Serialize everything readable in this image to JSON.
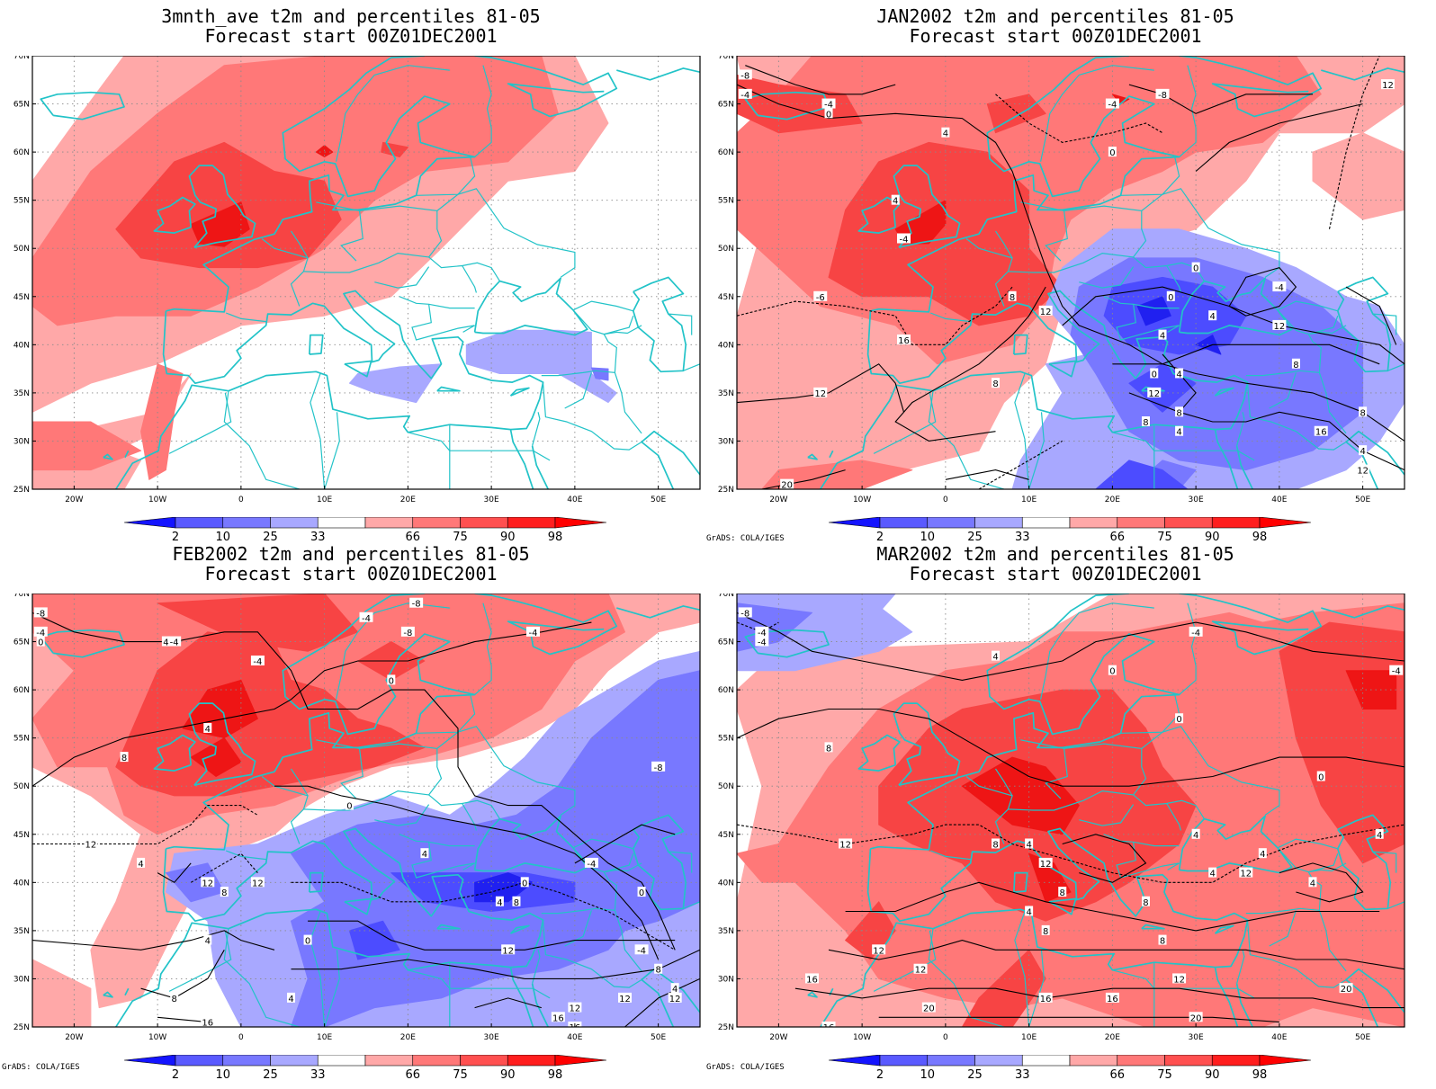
{
  "credit": "GrADS: COLA/IGES",
  "panels": [
    {
      "id": "p1",
      "title": "3mnth_ave t2m and percentiles 81-05",
      "subtitle": "Forecast start 00Z01DEC2001",
      "contours": []
    },
    {
      "id": "p2",
      "title": "JAN2002 t2m and percentiles 81-05",
      "subtitle": "Forecast start 00Z01DEC2001",
      "contours": [
        "-8",
        "-4",
        "0",
        "-4",
        "-8",
        "12",
        "4",
        "0",
        "-4",
        "0",
        "4",
        "8",
        "12",
        "-4",
        "0",
        "4",
        "8",
        "4",
        "12",
        "-4",
        "4",
        "-6",
        "0",
        "4",
        "4",
        "12",
        "8",
        "16",
        "20",
        "12",
        "8",
        "12",
        "16",
        "8",
        "8"
      ]
    },
    {
      "id": "p3",
      "title": "FEB2002 t2m and percentiles 81-05",
      "subtitle": "Forecast start 00Z01DEC2001",
      "contours": [
        "-8",
        "-4",
        "0",
        "-4",
        "4",
        "-8",
        "-4",
        "-8",
        "-4",
        "0",
        "-4",
        "4",
        "8",
        "-8",
        "12",
        "0",
        "4",
        "0",
        "-4",
        "4",
        "8",
        "12",
        "12",
        "4",
        "8",
        "12",
        "0",
        "4",
        "-4",
        "8",
        "4",
        "12",
        "8",
        "0",
        "12",
        "16",
        "16",
        "16",
        "12",
        "4"
      ]
    },
    {
      "id": "p4",
      "title": "MAR2002 t2m and percentiles 81-05",
      "subtitle": "Forecast start 00Z01DEC2001",
      "contours": [
        "-8",
        "-4",
        "-4",
        "0",
        "-4",
        "-4",
        "4",
        "0",
        "8",
        "0",
        "4",
        "4",
        "4",
        "12",
        "8",
        "12",
        "4",
        "8",
        "8",
        "12",
        "8",
        "8",
        "4",
        "12",
        "12",
        "12",
        "16",
        "16",
        "20",
        "16",
        "20",
        "16",
        "20",
        "4",
        "4"
      ]
    }
  ],
  "axes": {
    "lat_labels": [
      "70N",
      "65N",
      "60N",
      "55N",
      "50N",
      "45N",
      "40N",
      "35N",
      "30N",
      "25N"
    ],
    "lon_labels": [
      "20W",
      "10W",
      "0",
      "10E",
      "20E",
      "30E",
      "40E",
      "50E"
    ]
  },
  "colorbar": {
    "labels": [
      "2",
      "10",
      "25",
      "33",
      "66",
      "75",
      "90",
      "98"
    ],
    "colors": [
      "#1414ff",
      "#5a5aff",
      "#7878ff",
      "#a8a8ff",
      "#ffffff",
      "#ffa8a8",
      "#ff7878",
      "#ff5050",
      "#ff1e1e",
      "#ff0000"
    ]
  },
  "colors": {
    "coast": "#22c3c8",
    "red1": "#ffa8a8",
    "red2": "#ff7878",
    "red3": "#f74444",
    "red4": "#ee1515",
    "blue1": "#a8a8ff",
    "blue2": "#7878ff",
    "blue3": "#4c4cff",
    "blue4": "#2020f0"
  }
}
